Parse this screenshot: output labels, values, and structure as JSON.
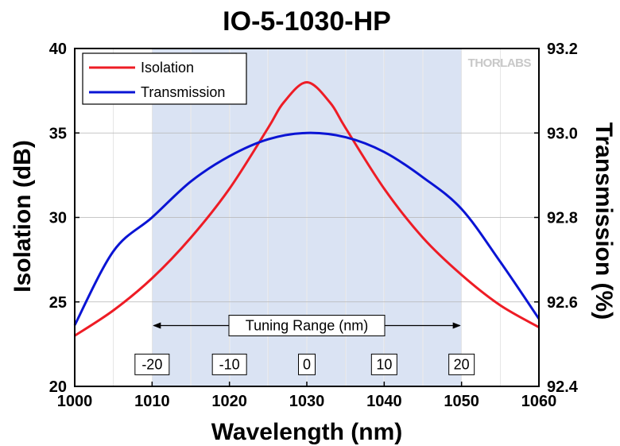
{
  "chart_data": {
    "type": "line",
    "title": "IO-5-1030-HP",
    "xlabel": "Wavelength (nm)",
    "ylabel": "Isolation (dB)",
    "y2label": "Transmission (%)",
    "xlim": [
      1000,
      1060
    ],
    "ylim": [
      20,
      40
    ],
    "y2lim": [
      92.4,
      93.2
    ],
    "xticks": [
      1000,
      1010,
      1020,
      1030,
      1040,
      1050,
      1060
    ],
    "yticks": [
      20,
      25,
      30,
      35,
      40
    ],
    "y2ticks": [
      "92.4",
      "92.6",
      "92.8",
      "93.0",
      "93.2"
    ],
    "grid": true,
    "legend_position": "top-left",
    "shaded_region": [
      1010,
      1050
    ],
    "shaded_color": "#dae3f3",
    "series": [
      {
        "name": "Isolation",
        "axis": "left",
        "color": "#ee1c25",
        "x": [
          1000,
          1005,
          1010,
          1015,
          1020,
          1025,
          1027,
          1030,
          1033,
          1035,
          1040,
          1045,
          1050,
          1055,
          1060
        ],
        "values": [
          23.0,
          24.5,
          26.4,
          28.8,
          31.7,
          35.3,
          36.8,
          38.0,
          36.8,
          35.3,
          31.7,
          28.8,
          26.6,
          24.8,
          23.5
        ]
      },
      {
        "name": "Transmission",
        "axis": "right",
        "color": "#0a14d4",
        "x": [
          1000,
          1005,
          1010,
          1015,
          1020,
          1025,
          1030,
          1035,
          1040,
          1045,
          1050,
          1055,
          1060
        ],
        "values": [
          92.545,
          92.72,
          92.8,
          92.885,
          92.945,
          92.985,
          93.0,
          92.99,
          92.955,
          92.895,
          92.82,
          92.695,
          92.56
        ]
      }
    ],
    "annotation": {
      "label": "Tuning Range (nm)",
      "x_range": [
        1010,
        1050
      ],
      "y": 23.6,
      "offset_labels": [
        "-20",
        "-10",
        "0",
        "10",
        "20"
      ],
      "offset_positions": [
        1010,
        1020,
        1030,
        1040,
        1050
      ],
      "offset_label_y": 21.3
    },
    "watermark": "THORLABS"
  }
}
